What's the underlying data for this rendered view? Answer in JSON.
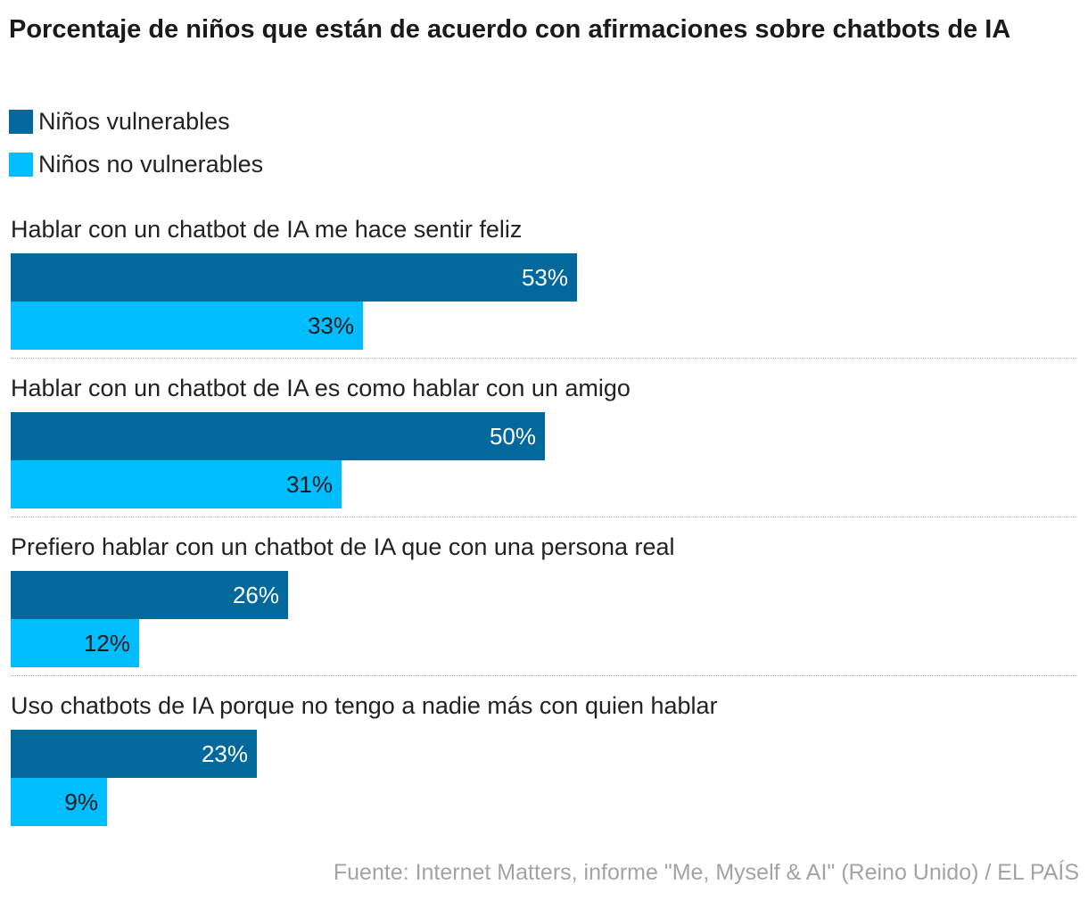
{
  "chart_data": {
    "type": "bar",
    "orientation": "horizontal",
    "title": "Porcentaje de niños que están de acuerdo con afirmaciones sobre chatbots de IA",
    "categories": [
      "Hablar con un chatbot de IA me hace sentir feliz",
      "Hablar con un chatbot de IA es como hablar con un amigo",
      "Prefiero hablar con un chatbot de IA que con una persona real",
      "Uso chatbots de IA porque no tengo a nadie más con quien hablar"
    ],
    "series": [
      {
        "name": "Niños vulnerables",
        "color": "#03699c",
        "values": [
          53,
          50,
          26,
          23
        ],
        "labels": [
          "53%",
          "50%",
          "26%",
          "23%"
        ]
      },
      {
        "name": "Niños no vulnerables",
        "color": "#00bdff",
        "values": [
          33,
          31,
          12,
          9
        ],
        "labels": [
          "33%",
          "31%",
          "12%",
          "9%"
        ]
      }
    ],
    "unit": "%",
    "xlim": [
      0,
      100
    ],
    "grid": false,
    "legend_position": "top-left"
  },
  "source": "Fuente: Internet Matters, informe \"Me, Myself & AI\" (Reino Unido) / EL PAÍS"
}
